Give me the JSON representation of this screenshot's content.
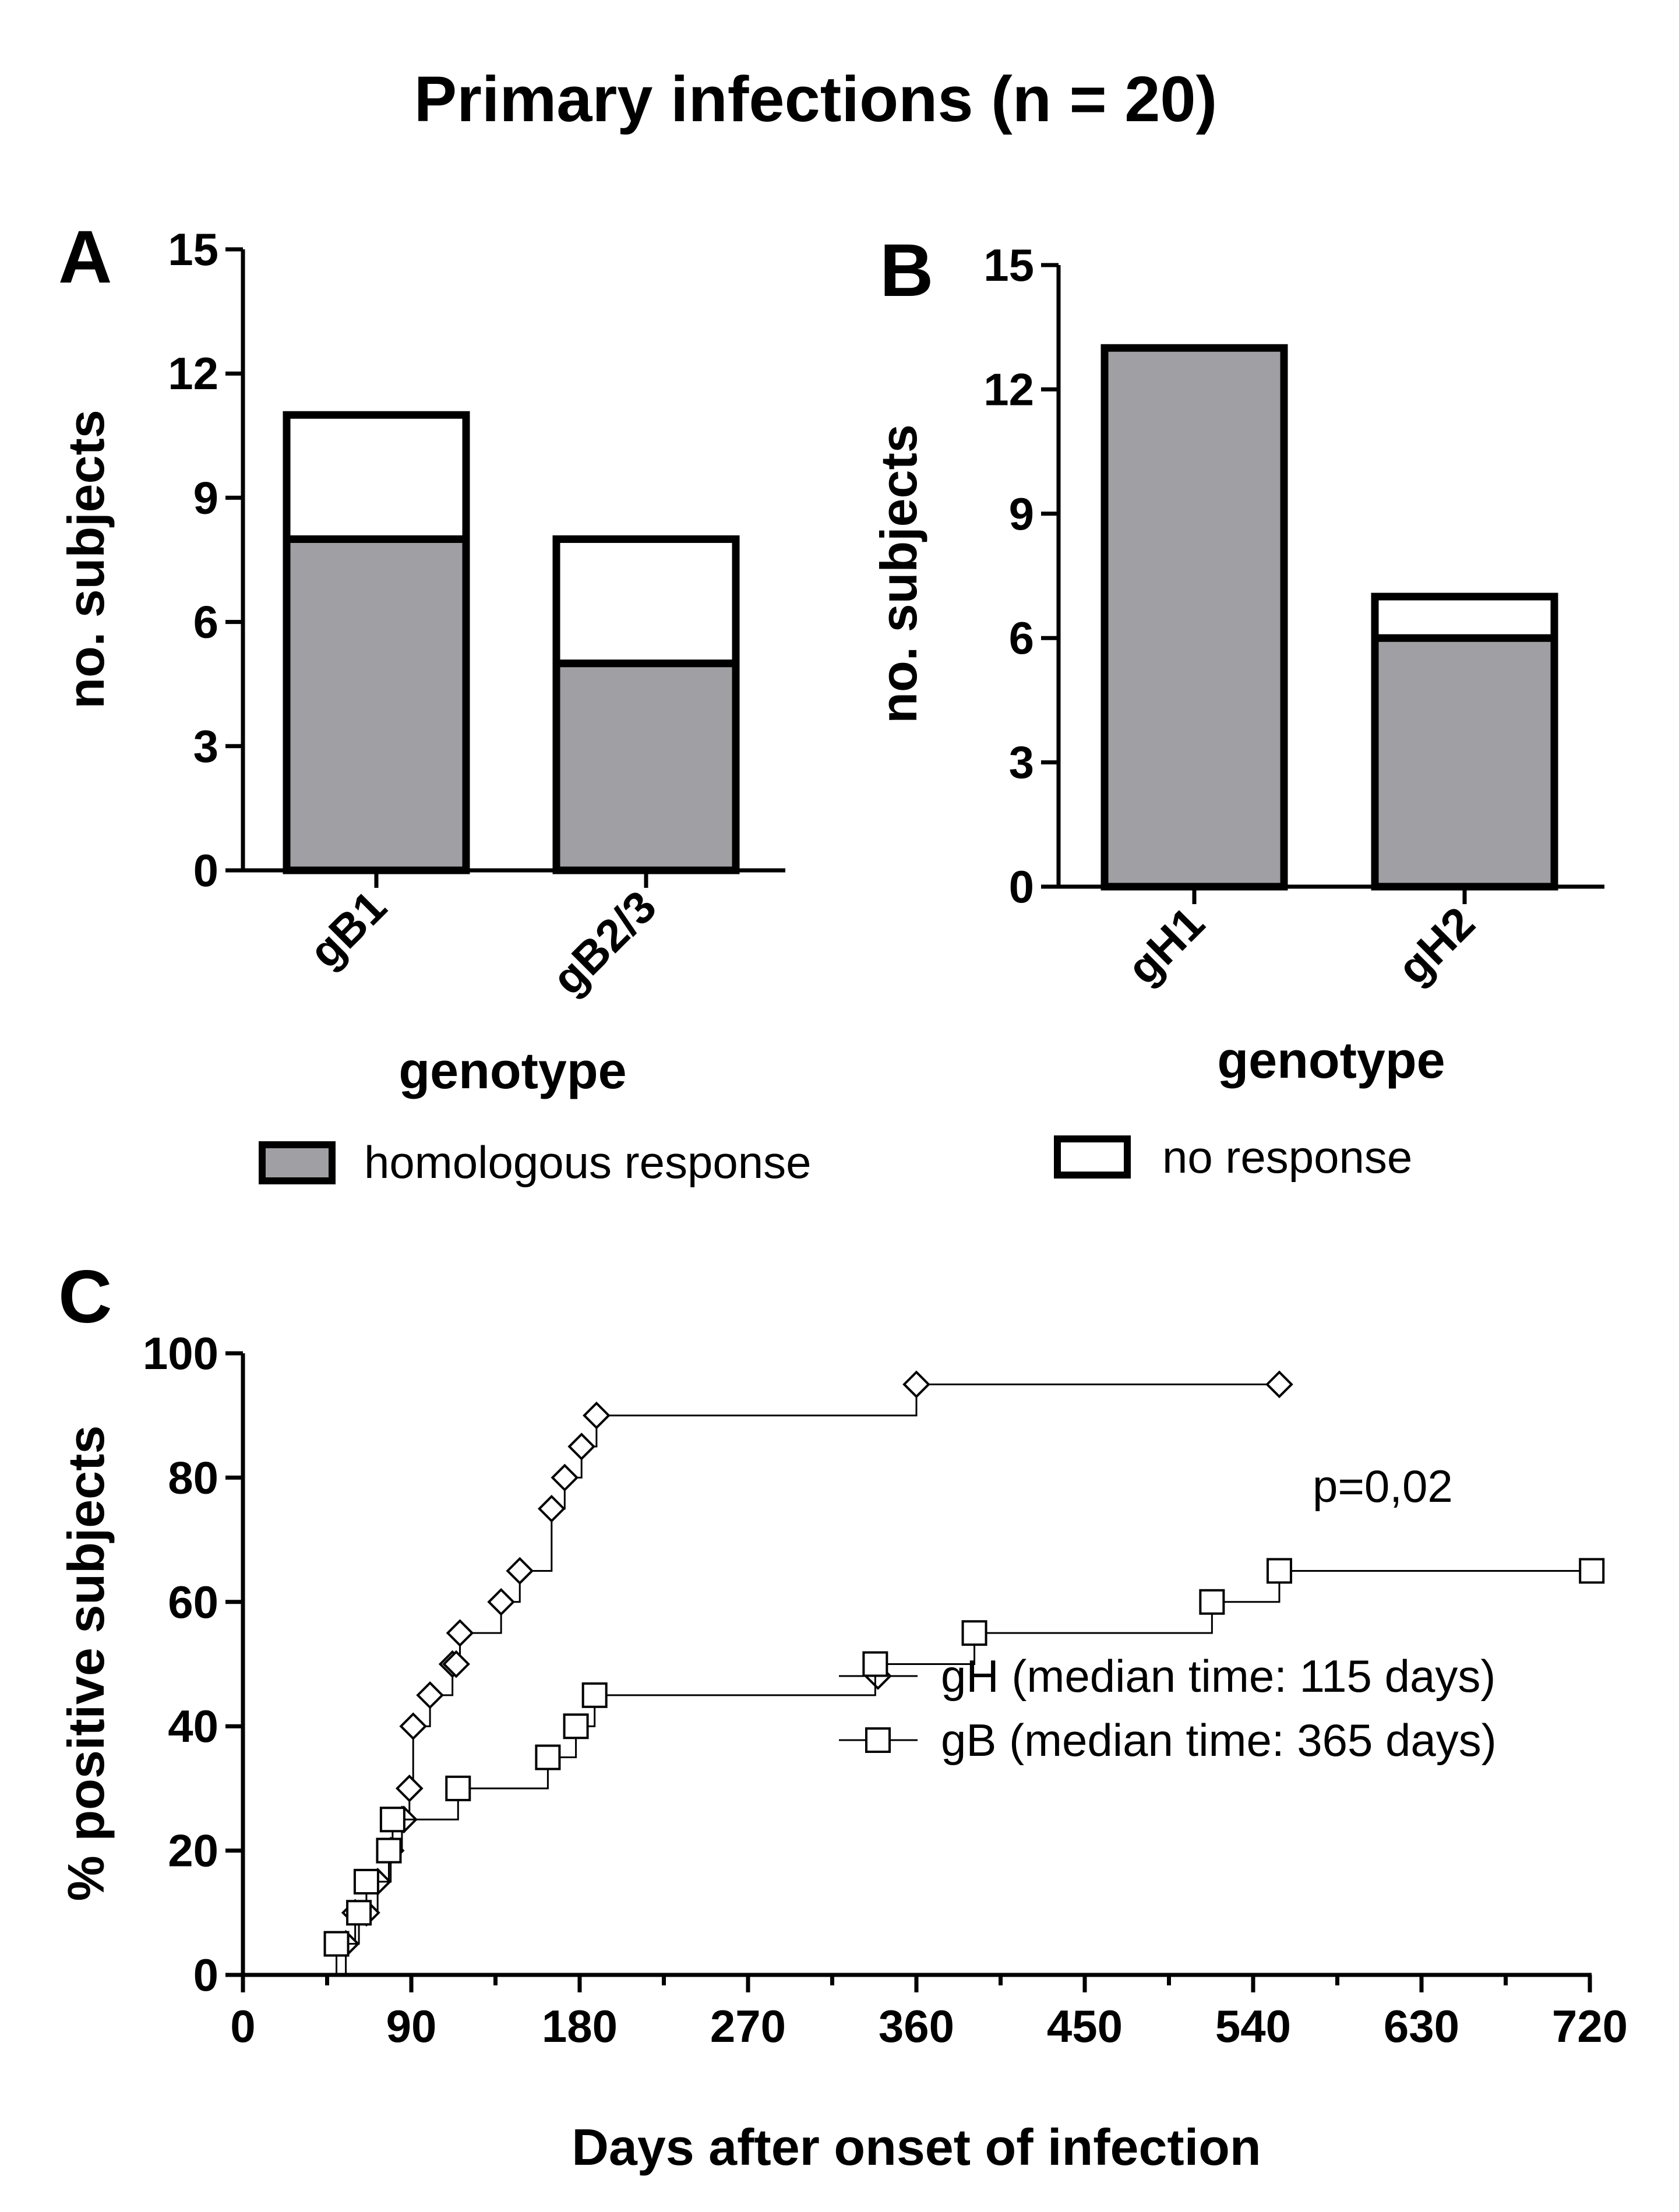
{
  "title": "Primary infections (n = 20)",
  "colors": {
    "homologous": "#a0a0a4",
    "none": "#ffffff",
    "stroke": "#000000"
  },
  "legend": {
    "homologous": "homologous response",
    "none": "no response"
  },
  "chart_data": [
    {
      "panel": "A",
      "type": "bar",
      "stacked": true,
      "categories": [
        "gB1",
        "gB2/3"
      ],
      "series": [
        {
          "name": "homologous response",
          "values": [
            8,
            5
          ]
        },
        {
          "name": "no response",
          "values": [
            3,
            3
          ]
        }
      ],
      "xlabel": "genotype",
      "ylabel": "no. subjects",
      "ylim": [
        0,
        15
      ],
      "yticks": [
        "0",
        "3",
        "6",
        "9",
        "12",
        "15"
      ]
    },
    {
      "panel": "B",
      "type": "bar",
      "stacked": true,
      "categories": [
        "gH1",
        "gH2"
      ],
      "series": [
        {
          "name": "homologous response",
          "values": [
            13,
            6
          ]
        },
        {
          "name": "no response",
          "values": [
            0,
            1
          ]
        }
      ],
      "xlabel": "genotype",
      "ylabel": "no. subjects",
      "ylim": [
        0,
        15
      ],
      "yticks": [
        "0",
        "3",
        "6",
        "9",
        "12",
        "15"
      ]
    },
    {
      "panel": "C",
      "type": "line",
      "step": true,
      "xlabel": "Days after onset of infection",
      "ylabel": "% positive subjects",
      "xlim": [
        0,
        720
      ],
      "ylim": [
        0,
        100
      ],
      "xticks": [
        "0",
        "90",
        "180",
        "270",
        "360",
        "450",
        "540",
        "630",
        "720"
      ],
      "yticks": [
        "0",
        "20",
        "40",
        "60",
        "80",
        "100"
      ],
      "annotation": "p=0,02",
      "series": [
        {
          "name": "gH (median time: 115 days)",
          "marker": "diamond",
          "x": [
            55,
            60,
            66,
            72,
            79,
            85,
            86,
            89,
            91,
            100,
            112,
            114,
            116,
            138,
            148,
            165,
            172,
            181,
            189,
            360,
            554
          ],
          "y": [
            5,
            10,
            10,
            15,
            20,
            25,
            25,
            30,
            40,
            45,
            50,
            50,
            55,
            60,
            65,
            75,
            80,
            85,
            90,
            95,
            95
          ]
        },
        {
          "name": "gB (median time: 365 days)",
          "marker": "square",
          "x": [
            50,
            62,
            66,
            78,
            80,
            115,
            163,
            178,
            188,
            338,
            391,
            518,
            554,
            721
          ],
          "y": [
            5,
            10,
            15,
            20,
            25,
            30,
            35,
            40,
            45,
            50,
            55,
            60,
            65,
            65
          ]
        }
      ]
    }
  ]
}
